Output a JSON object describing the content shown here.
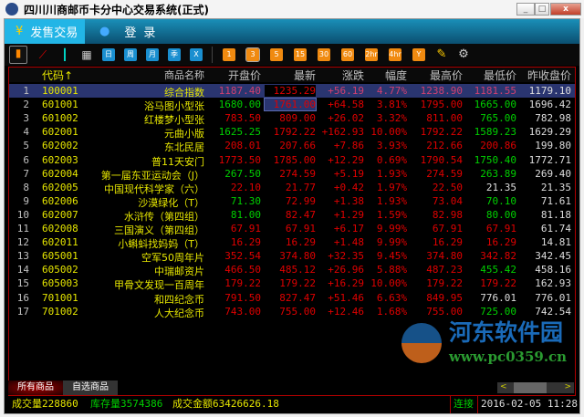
{
  "window": {
    "title": "四川川商邮币卡分中心交易系统(正式)"
  },
  "nav": {
    "sell": "发售交易",
    "login": "登录",
    "sell_icon": "yen-icon",
    "login_icon": "user-icon"
  },
  "toolbar": {
    "icons": [
      "bar-chart-icon",
      "line-chart-icon",
      "candlestick-icon",
      "calendar-icon"
    ],
    "periods": [
      "日",
      "周",
      "月",
      "季",
      "X"
    ],
    "minutes": [
      "1",
      "3",
      "5",
      "15",
      "30",
      "60",
      "2hr",
      "4hr",
      "Y"
    ],
    "selected_minute": "3"
  },
  "table": {
    "headers": [
      "代码↑",
      "商品名称",
      "开盘价",
      "最新",
      "涨跌",
      "幅度",
      "最高价",
      "最低价",
      "昨收盘价"
    ],
    "selected_row": 0,
    "rows": [
      [
        "1",
        "100001",
        "综合指数",
        "1187.40",
        "1235.29",
        "+56.19",
        "4.77%",
        "1238.90",
        "1181.55",
        "1179.10"
      ],
      [
        "2",
        "601001",
        "浴马图小型张",
        "1680.00",
        "1761.00",
        "+64.58",
        "3.81%",
        "1795.00",
        "1665.00",
        "1696.42"
      ],
      [
        "3",
        "601002",
        "红楼梦小型张",
        "783.50",
        "809.00",
        "+26.02",
        "3.32%",
        "811.00",
        "765.00",
        "782.98"
      ],
      [
        "4",
        "602001",
        "元曲小版",
        "1625.25",
        "1792.22",
        "+162.93",
        "10.00%",
        "1792.22",
        "1589.23",
        "1629.29"
      ],
      [
        "5",
        "602002",
        "东北民居",
        "208.01",
        "207.66",
        "+7.86",
        "3.93%",
        "212.66",
        "200.86",
        "199.80"
      ],
      [
        "6",
        "602003",
        "普11天安门",
        "1773.50",
        "1785.00",
        "+12.29",
        "0.69%",
        "1790.54",
        "1750.40",
        "1772.71"
      ],
      [
        "7",
        "602004",
        "第一届东亚运动会（J）",
        "267.50",
        "274.59",
        "+5.19",
        "1.93%",
        "274.59",
        "263.89",
        "269.40"
      ],
      [
        "8",
        "602005",
        "中国现代科学家（六）",
        "22.10",
        "21.77",
        "+0.42",
        "1.97%",
        "22.50",
        "21.35",
        "21.35"
      ],
      [
        "9",
        "602006",
        "沙漠绿化（T）",
        "71.30",
        "72.99",
        "+1.38",
        "1.93%",
        "73.04",
        "70.10",
        "71.61"
      ],
      [
        "10",
        "602007",
        "水浒传（第四组）",
        "81.00",
        "82.47",
        "+1.29",
        "1.59%",
        "82.98",
        "80.00",
        "81.18"
      ],
      [
        "11",
        "602008",
        "三国演义（第四组）",
        "67.91",
        "67.91",
        "+6.17",
        "9.99%",
        "67.91",
        "67.91",
        "61.74"
      ],
      [
        "12",
        "602011",
        "小蝌蚪找妈妈（T）",
        "16.29",
        "16.29",
        "+1.48",
        "9.99%",
        "16.29",
        "16.29",
        "14.81"
      ],
      [
        "13",
        "605001",
        "空军50周年片",
        "352.54",
        "374.80",
        "+32.35",
        "9.45%",
        "374.80",
        "342.82",
        "342.45"
      ],
      [
        "14",
        "605002",
        "中瑞邮资片",
        "466.50",
        "485.12",
        "+26.96",
        "5.88%",
        "487.23",
        "455.42",
        "458.16"
      ],
      [
        "15",
        "605003",
        "甲骨文发现一百周年",
        "179.22",
        "179.22",
        "+16.29",
        "10.00%",
        "179.22",
        "179.22",
        "162.93"
      ],
      [
        "16",
        "701001",
        "和四纪念币",
        "791.50",
        "827.47",
        "+51.46",
        "6.63%",
        "849.95",
        "776.01",
        "776.01"
      ],
      [
        "17",
        "701002",
        "人大纪念币",
        "743.00",
        "755.00",
        "+12.46",
        "1.68%",
        "755.00",
        "725.00",
        "742.54"
      ]
    ]
  },
  "bottom_tabs": [
    "所有商品",
    "自选商品"
  ],
  "status": {
    "volume": "成交量228860",
    "inventory": "库存量3574386",
    "amount": "成交金额63426626.18",
    "connection": "连接",
    "datetime": "2016-02-05 11:28"
  },
  "watermark": {
    "text": "河东软件园",
    "url": "www.pc0359.cn"
  },
  "colors": {
    "up": "#e00000",
    "down": "#00d000",
    "flat": "#dddddd",
    "code": "#e6e600",
    "accent": "#22b5e6"
  }
}
